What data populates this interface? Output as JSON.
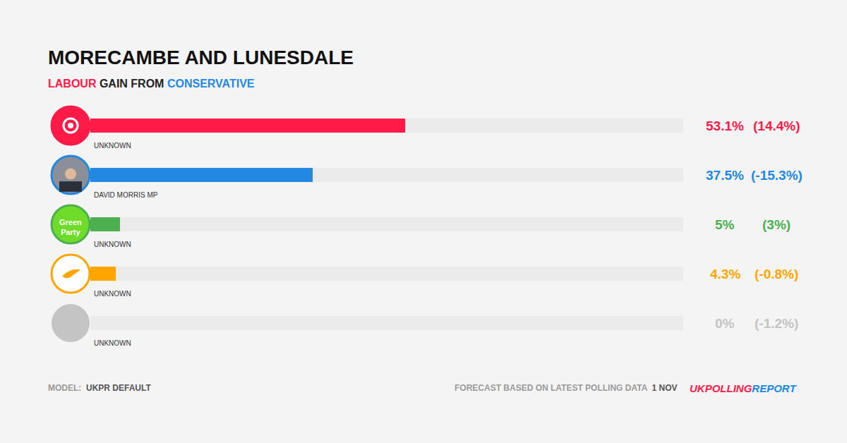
{
  "chart_data": {
    "type": "bar",
    "orientation": "horizontal",
    "title": "MORECAMBE AND LUNESDALE",
    "subtitle": "LABOUR GAIN FROM CONSERVATIVE",
    "categories": [
      "UNKNOWN",
      "DAVID MORRIS MP",
      "UNKNOWN",
      "UNKNOWN",
      "UNKNOWN"
    ],
    "icon_labels": [
      null,
      null,
      "Green Party",
      null,
      null
    ],
    "values": [
      53.1,
      37.5,
      5,
      4.3,
      0
    ],
    "value_labels": [
      "53.1%",
      "37.5%",
      "5%",
      "4.3%",
      "0%"
    ],
    "changes": [
      14.4,
      -15.3,
      3,
      -0.8,
      -1.2
    ],
    "change_labels": [
      "(14.4%)",
      "(-15.3%)",
      "(3%)",
      "(-0.8%)",
      "(-1.2%)"
    ],
    "colors": [
      "#ff1a48",
      "#2288e2",
      "#4caf50",
      "#ffa500",
      "#c4c4c4"
    ],
    "xlim": [
      0,
      100
    ],
    "grid": false,
    "tick_labels": false,
    "data_labels": true,
    "footer": {
      "model_label": "MODEL:",
      "model": "UKPR DEFAULT",
      "note": "FORECAST BASED ON LATEST POLLING DATA",
      "date": "1 NOV",
      "source": [
        "UKPOLLING",
        "REPORT"
      ]
    }
  }
}
